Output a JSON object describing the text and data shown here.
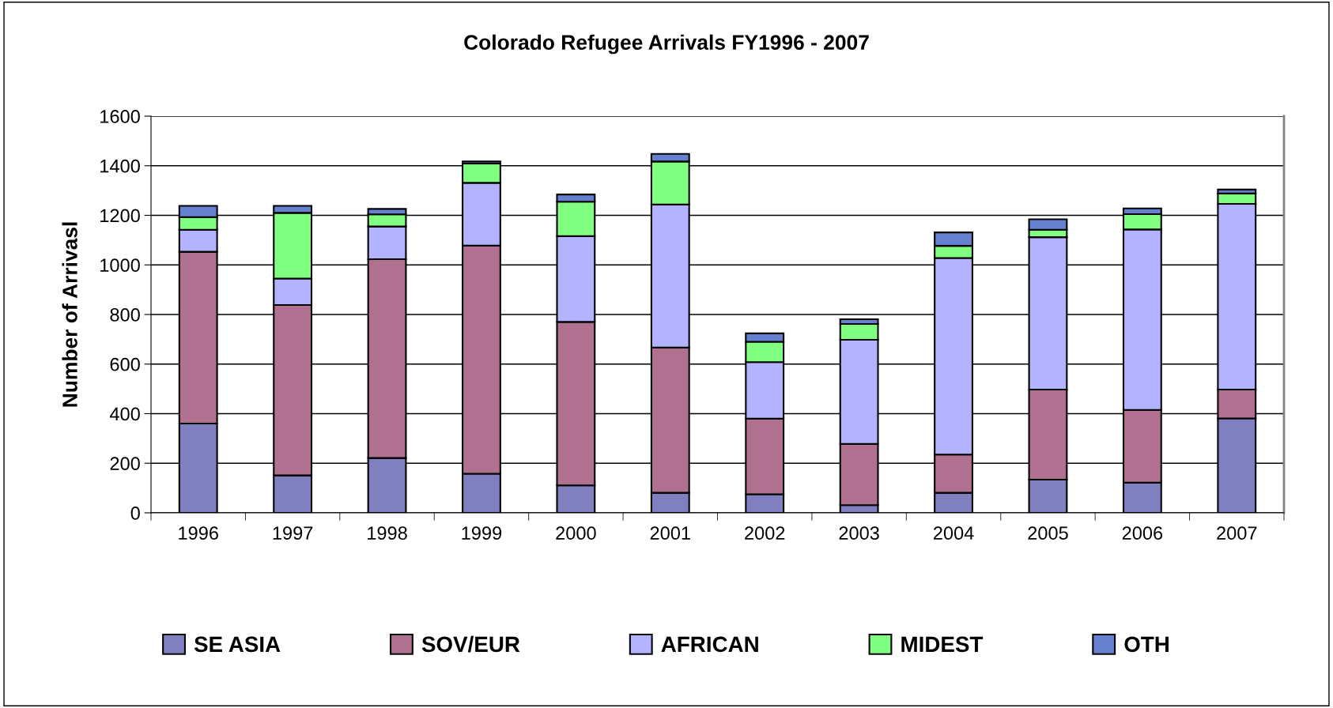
{
  "chart_data": {
    "type": "bar",
    "stacked": true,
    "title": "Colorado Refugee Arrivals FY1996 - 2007",
    "ylabel": "Number of Arrivasl",
    "categories": [
      "1996",
      "1997",
      "1998",
      "1999",
      "2000",
      "2001",
      "2002",
      "2003",
      "2004",
      "2005",
      "2006",
      "2007"
    ],
    "series": [
      {
        "name": "SE ASIA",
        "color": "#8080c0",
        "values": [
          360,
          151,
          221,
          158,
          111,
          81,
          75,
          31,
          81,
          134,
          122,
          381
        ]
      },
      {
        "name": "SOV/EUR",
        "color": "#b07090",
        "values": [
          693,
          687,
          802,
          920,
          659,
          586,
          305,
          247,
          154,
          363,
          293,
          116
        ]
      },
      {
        "name": "AFRICAN",
        "color": "#b3b3ff",
        "values": [
          89,
          107,
          132,
          253,
          346,
          577,
          228,
          420,
          793,
          615,
          728,
          749
        ]
      },
      {
        "name": "MIDEST",
        "color": "#80ff80",
        "values": [
          51,
          265,
          49,
          78,
          139,
          173,
          82,
          64,
          49,
          30,
          62,
          42
        ]
      },
      {
        "name": "OTH",
        "color": "#6680d0",
        "values": [
          45,
          28,
          22,
          8,
          29,
          31,
          34,
          19,
          54,
          42,
          23,
          16
        ]
      }
    ],
    "ylim": [
      0,
      1600
    ],
    "yticks": [
      0,
      200,
      400,
      600,
      800,
      1000,
      1200,
      1400,
      1600
    ],
    "grid": "y",
    "legend": "bottom"
  }
}
